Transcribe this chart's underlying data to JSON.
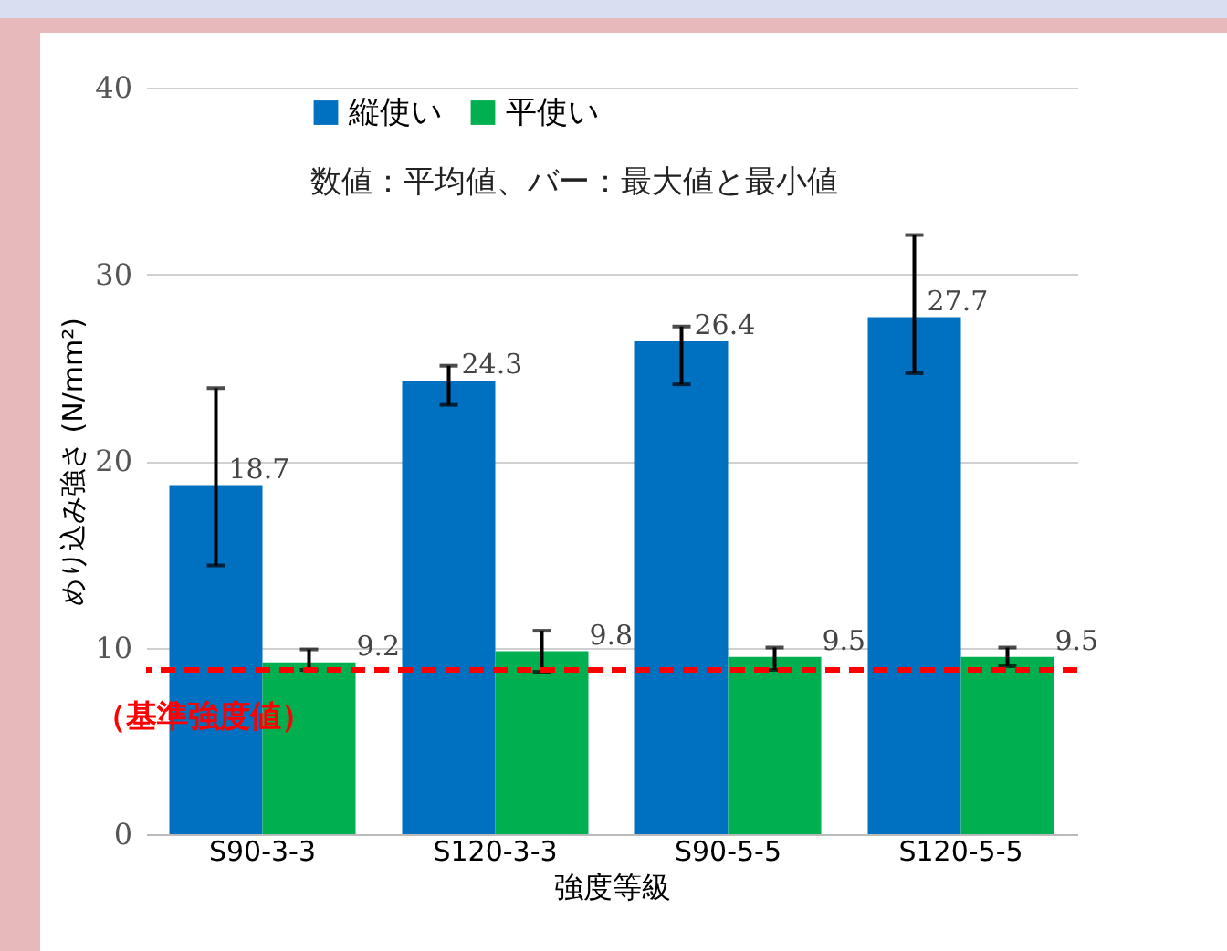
{
  "chart_data": {
    "type": "bar",
    "xlabel": "強度等級",
    "ylabel": "めり込み強さ (N/mm²)",
    "categories": [
      "S90-3-3",
      "S120-3-3",
      "S90-5-5",
      "S120-5-5"
    ],
    "series": [
      {
        "name": "縦使い",
        "color": "#0070c0",
        "values": [
          18.7,
          24.3,
          26.4,
          27.7
        ],
        "errors": [
          [
            14.4,
            23.9
          ],
          [
            23.0,
            25.1
          ],
          [
            24.1,
            27.2
          ],
          [
            24.7,
            32.1
          ]
        ]
      },
      {
        "name": "平使い",
        "color": "#00b050",
        "values": [
          9.2,
          9.8,
          9.5,
          9.5
        ],
        "errors": [
          [
            8.8,
            9.9
          ],
          [
            8.7,
            10.9
          ],
          [
            8.8,
            10.0
          ],
          [
            9.0,
            10.0
          ]
        ]
      }
    ],
    "ylim": [
      0,
      40
    ],
    "yticks": [
      0,
      10,
      20,
      30,
      40
    ],
    "grid": "y",
    "legend": "top",
    "data_labels": true,
    "ref_lines": [
      {
        "axis": "y",
        "value": 8.8,
        "label": "（基準強度値）",
        "color": "#ff0000",
        "line_style": "dashed"
      }
    ],
    "annotations": [
      "数値：平均値、バー：最大値と最小値"
    ]
  }
}
